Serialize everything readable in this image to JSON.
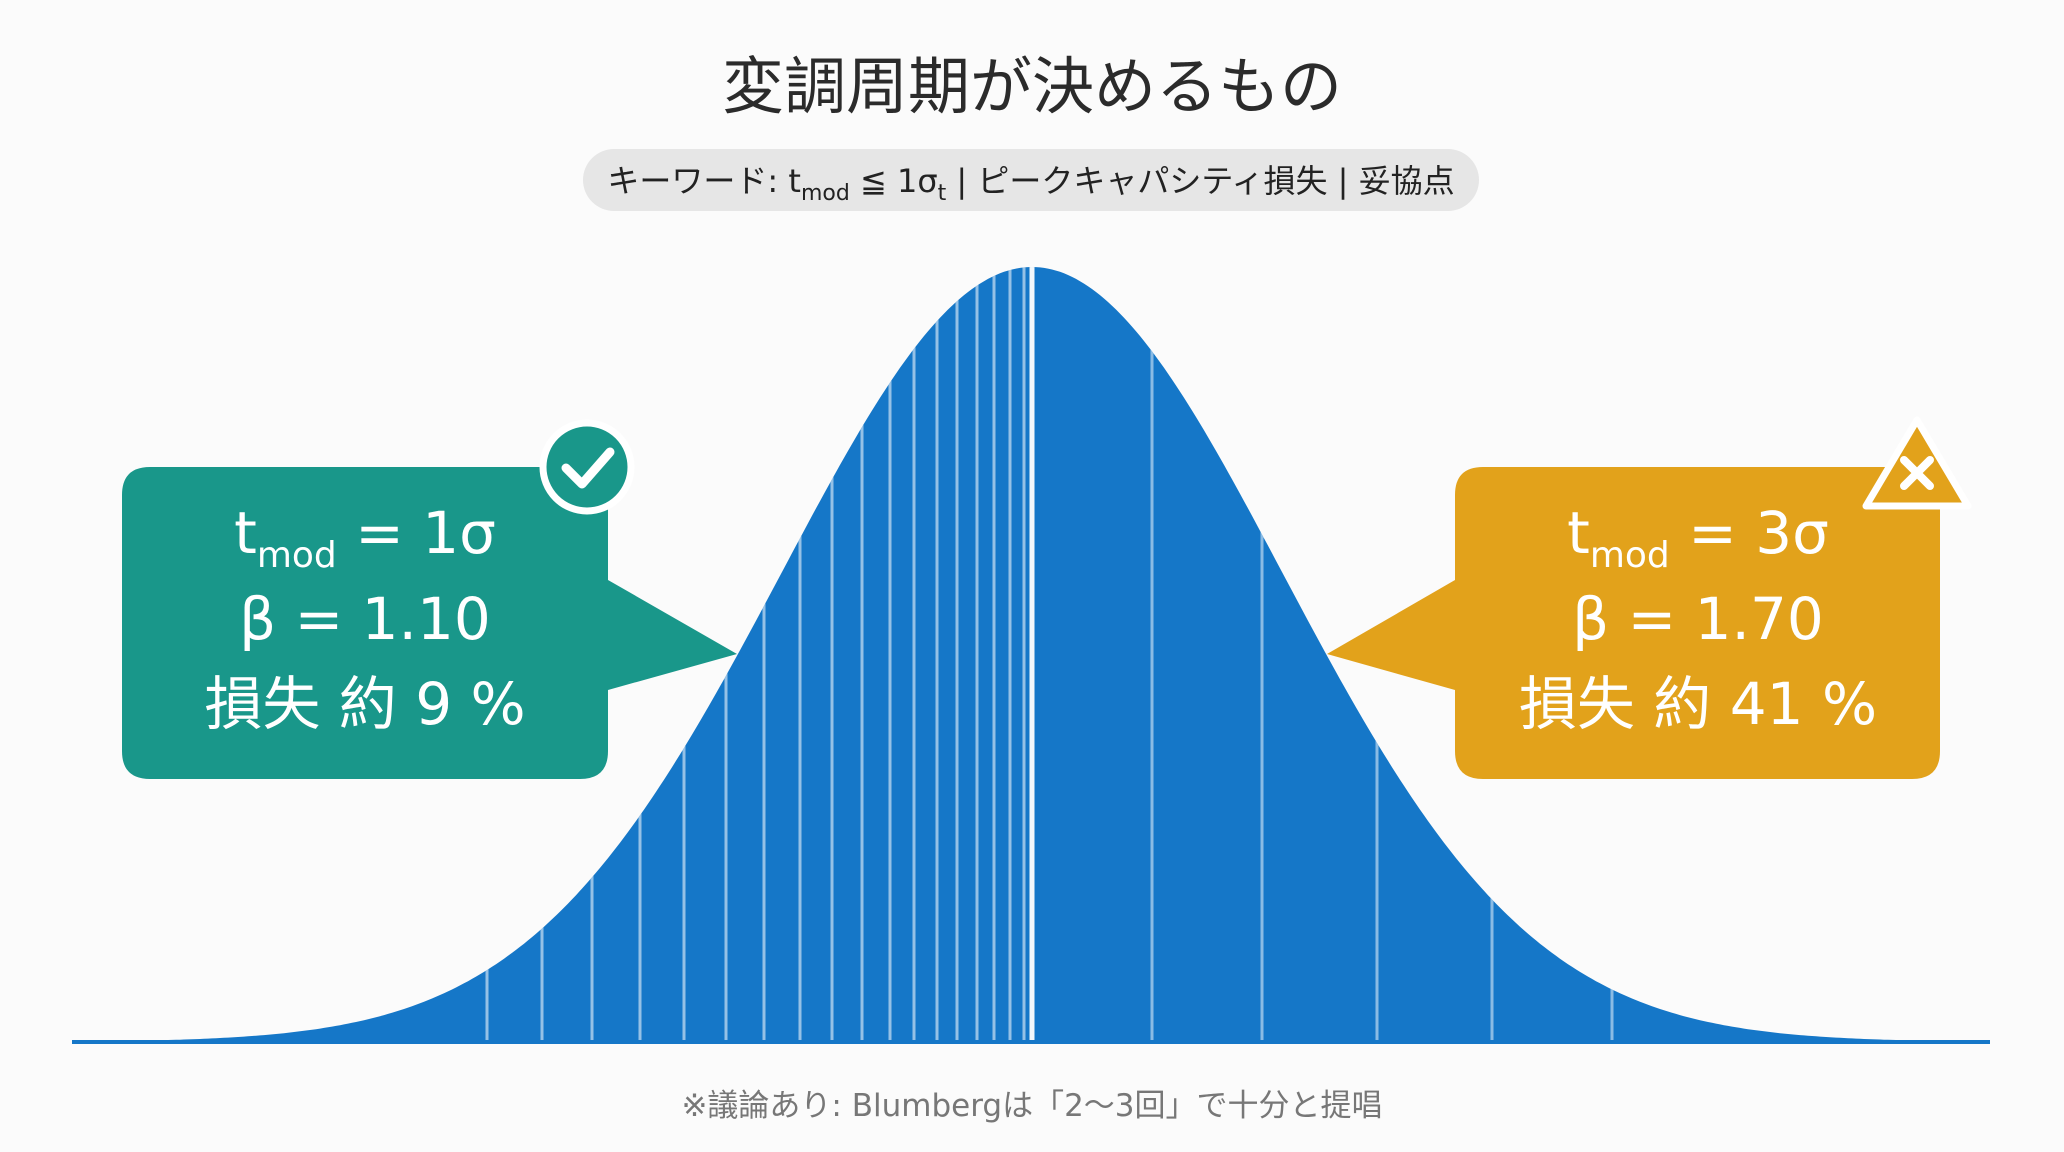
{
  "header": {
    "title": "変調周期が決めるもの",
    "keywords": {
      "prefix": "キーワード: ",
      "t": "t",
      "t_sub": "mod",
      "relation": " ≦ 1σ",
      "sigma_sub": "t",
      "rest": " | ピークキャパシティ損失 | 妥協点"
    }
  },
  "callouts": [
    {
      "t": "t",
      "t_sub": "mod",
      "t_value": " = 1σ",
      "beta": "β = 1.10",
      "loss": "損失 約 9 %"
    },
    {
      "t": "t",
      "t_sub": "mod",
      "t_value": " = 3σ",
      "beta": "β = 1.70",
      "loss": "損失 約 41 %"
    }
  ],
  "footnote": "※議論あり: Blumbergは「2〜3回」で十分と提唱"
}
